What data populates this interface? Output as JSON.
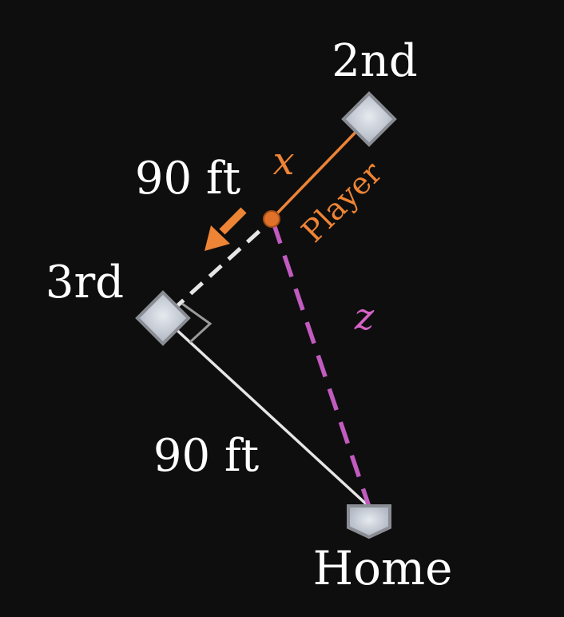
{
  "diagram": {
    "labels": {
      "second": "2nd",
      "third": "3rd",
      "home": "Home",
      "dist_top": "90 ft",
      "dist_bottom": "90 ft",
      "x": "x",
      "z": "z",
      "player": "Player"
    },
    "colors": {
      "background": "#0e0e0e",
      "base_fill": "#c3c9d3",
      "base_stroke": "#8a8d93",
      "orange": "#ee8435",
      "pink": "#c25bc0",
      "white_line": "#e6e6e6",
      "text": "#ffffff"
    }
  }
}
